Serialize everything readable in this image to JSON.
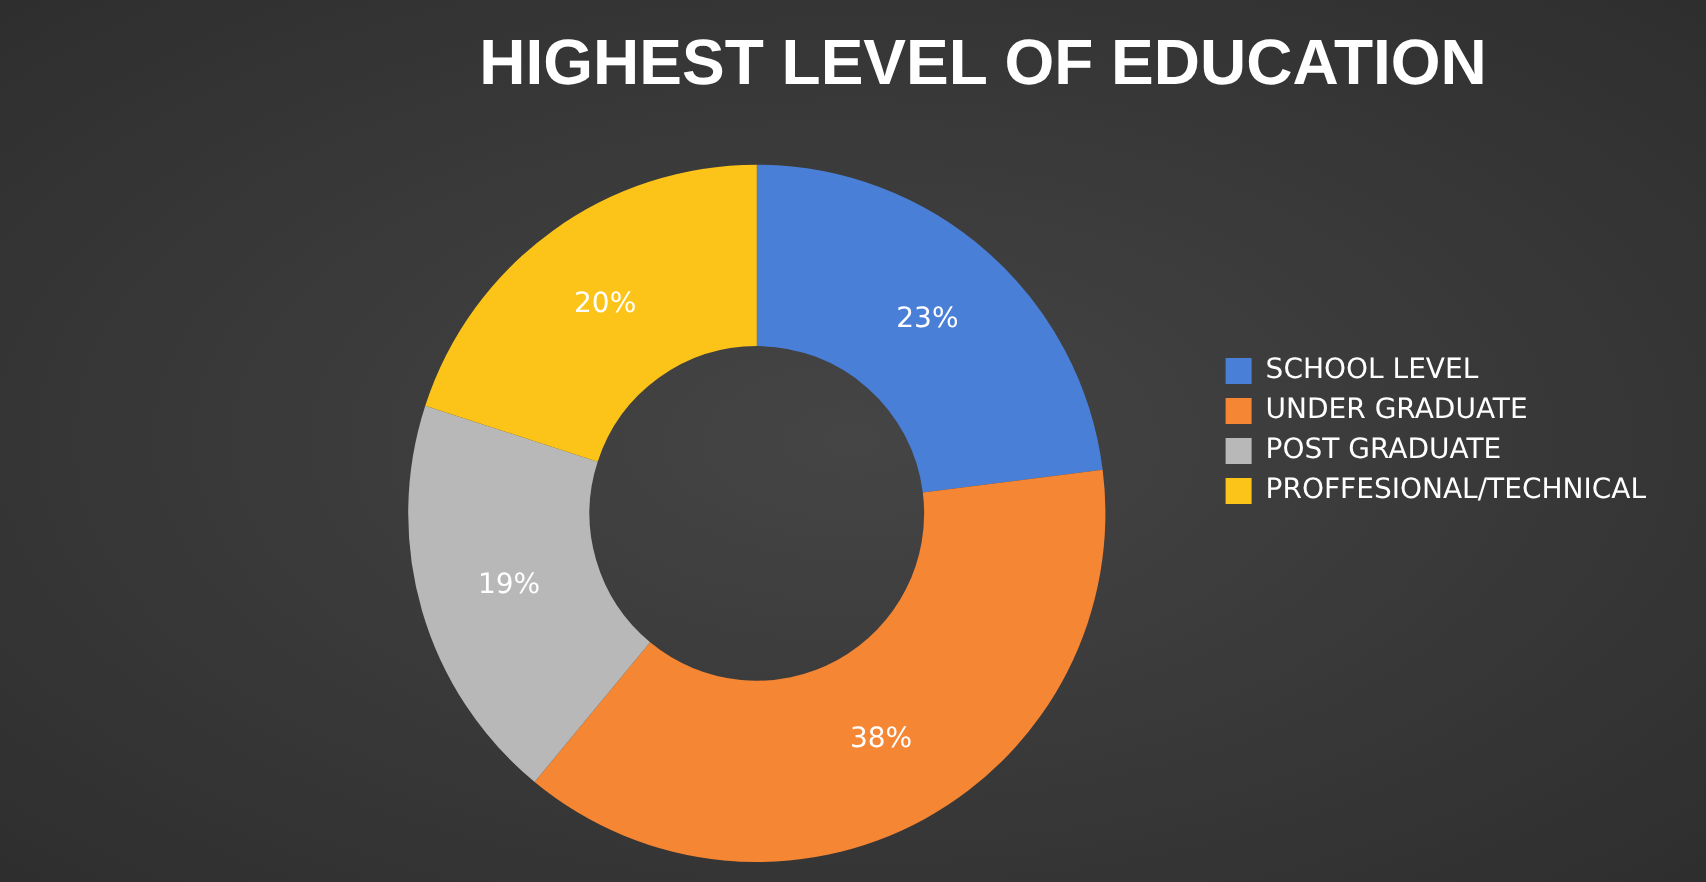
{
  "chart_data": {
    "type": "donut",
    "title": "HIGHEST LEVEL OF EDUCATION",
    "categories": [
      "SCHOOL LEVEL",
      "UNDER GRADUATE",
      "POST GRADUATE",
      "PROFFESIONAL/TECHNICAL"
    ],
    "values": [
      23,
      38,
      19,
      20
    ],
    "colors": [
      "#4a7fd8",
      "#f58634",
      "#b8b8b8",
      "#fcc419"
    ],
    "value_labels": [
      "23%",
      "38%",
      "19%",
      "20%"
    ],
    "legend": "right"
  }
}
